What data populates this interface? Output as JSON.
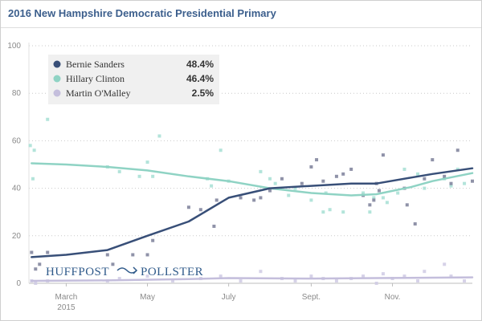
{
  "title": "2016 New Hampshire Democratic Presidential Primary",
  "brand": {
    "left": "HUFFPOST",
    "right": "POLLSTER",
    "icon": "arrow-logo-icon"
  },
  "chart_data": {
    "type": "scatter",
    "title": "2016 New Hampshire Democratic Presidential Primary",
    "xlabel": "",
    "ylabel": "",
    "ylim": [
      0,
      100
    ],
    "yticks": [
      0,
      20,
      40,
      60,
      80,
      100
    ],
    "xlim": [
      "2015-02-01",
      "2015-12-31"
    ],
    "xticks": [
      {
        "date": "2015-03-01",
        "label": "March",
        "sublabel": "2015"
      },
      {
        "date": "2015-05-01",
        "label": "May",
        "sublabel": ""
      },
      {
        "date": "2015-07-01",
        "label": "July",
        "sublabel": ""
      },
      {
        "date": "2015-09-01",
        "label": "Sept.",
        "sublabel": ""
      },
      {
        "date": "2015-11-01",
        "label": "Nov.",
        "sublabel": ""
      }
    ],
    "grid": true,
    "legend_placement": "top-left",
    "series": [
      {
        "name": "Bernie Sanders",
        "value_label": "48.4%",
        "color": "#384f78",
        "point_color": "#7b7f99",
        "trend": [
          [
            "2015-02-03",
            11
          ],
          [
            "2015-03-01",
            12
          ],
          [
            "2015-04-01",
            14
          ],
          [
            "2015-05-01",
            20
          ],
          [
            "2015-06-01",
            26
          ],
          [
            "2015-07-01",
            36
          ],
          [
            "2015-08-01",
            40
          ],
          [
            "2015-09-01",
            41
          ],
          [
            "2015-10-01",
            42
          ],
          [
            "2015-10-20",
            42
          ],
          [
            "2015-11-15",
            44.5
          ],
          [
            "2015-12-01",
            46
          ],
          [
            "2015-12-31",
            48.4
          ]
        ],
        "points": [
          [
            "2015-02-03",
            13
          ],
          [
            "2015-02-06",
            6
          ],
          [
            "2015-02-09",
            8
          ],
          [
            "2015-02-15",
            13
          ],
          [
            "2015-04-01",
            12
          ],
          [
            "2015-04-05",
            8
          ],
          [
            "2015-04-20",
            12
          ],
          [
            "2015-05-01",
            12
          ],
          [
            "2015-05-05",
            18
          ],
          [
            "2015-06-01",
            32
          ],
          [
            "2015-06-10",
            31
          ],
          [
            "2015-06-20",
            24
          ],
          [
            "2015-06-22",
            35
          ],
          [
            "2015-07-10",
            36
          ],
          [
            "2015-07-20",
            35
          ],
          [
            "2015-07-25",
            36
          ],
          [
            "2015-08-01",
            39
          ],
          [
            "2015-08-10",
            44
          ],
          [
            "2015-08-25",
            42
          ],
          [
            "2015-09-01",
            49
          ],
          [
            "2015-09-05",
            52
          ],
          [
            "2015-09-10",
            43
          ],
          [
            "2015-09-20",
            45
          ],
          [
            "2015-09-25",
            46
          ],
          [
            "2015-10-01",
            48
          ],
          [
            "2015-10-10",
            37
          ],
          [
            "2015-10-15",
            33
          ],
          [
            "2015-10-18",
            35
          ],
          [
            "2015-10-20",
            42
          ],
          [
            "2015-10-22",
            39
          ],
          [
            "2015-10-25",
            54
          ],
          [
            "2015-11-10",
            40
          ],
          [
            "2015-11-12",
            33
          ],
          [
            "2015-11-18",
            25
          ],
          [
            "2015-11-25",
            44
          ],
          [
            "2015-12-01",
            52
          ],
          [
            "2015-12-10",
            45
          ],
          [
            "2015-12-15",
            42
          ],
          [
            "2015-12-20",
            56
          ],
          [
            "2015-12-31",
            43
          ]
        ]
      },
      {
        "name": "Hillary Clinton",
        "value_label": "46.4%",
        "color": "#8fd3c4",
        "point_color": "#a6dfd3",
        "trend": [
          [
            "2015-02-03",
            50.5
          ],
          [
            "2015-03-01",
            50
          ],
          [
            "2015-04-01",
            49
          ],
          [
            "2015-05-01",
            47.5
          ],
          [
            "2015-06-01",
            45
          ],
          [
            "2015-07-01",
            43
          ],
          [
            "2015-08-01",
            40
          ],
          [
            "2015-09-01",
            38
          ],
          [
            "2015-10-01",
            37
          ],
          [
            "2015-10-20",
            37.5
          ],
          [
            "2015-11-15",
            40.5
          ],
          [
            "2015-12-01",
            43
          ],
          [
            "2015-12-31",
            46.4
          ]
        ],
        "points": [
          [
            "2015-02-02",
            58
          ],
          [
            "2015-02-04",
            44
          ],
          [
            "2015-02-05",
            56
          ],
          [
            "2015-02-15",
            69
          ],
          [
            "2015-04-01",
            49
          ],
          [
            "2015-04-10",
            47
          ],
          [
            "2015-04-25",
            45
          ],
          [
            "2015-05-01",
            51
          ],
          [
            "2015-05-05",
            45
          ],
          [
            "2015-05-10",
            62
          ],
          [
            "2015-06-15",
            44
          ],
          [
            "2015-06-18",
            41
          ],
          [
            "2015-06-25",
            56
          ],
          [
            "2015-07-01",
            43
          ],
          [
            "2015-07-25",
            47
          ],
          [
            "2015-08-01",
            44
          ],
          [
            "2015-08-05",
            42
          ],
          [
            "2015-08-15",
            37
          ],
          [
            "2015-08-20",
            40
          ],
          [
            "2015-09-01",
            35
          ],
          [
            "2015-09-10",
            30
          ],
          [
            "2015-09-12",
            38
          ],
          [
            "2015-09-15",
            31
          ],
          [
            "2015-09-25",
            30
          ],
          [
            "2015-10-10",
            38
          ],
          [
            "2015-10-15",
            30
          ],
          [
            "2015-10-18",
            36
          ],
          [
            "2015-10-25",
            36
          ],
          [
            "2015-10-28",
            34
          ],
          [
            "2015-11-05",
            38
          ],
          [
            "2015-11-10",
            48
          ],
          [
            "2015-11-20",
            46
          ],
          [
            "2015-11-25",
            40
          ],
          [
            "2015-12-10",
            44
          ],
          [
            "2015-12-15",
            41
          ],
          [
            "2015-12-20",
            48
          ],
          [
            "2015-12-25",
            42
          ]
        ]
      },
      {
        "name": "Martin O'Malley",
        "value_label": "2.5%",
        "color": "#c4bedc",
        "point_color": "#cfcae4",
        "trend": [
          [
            "2015-02-03",
            1
          ],
          [
            "2015-04-01",
            1.2
          ],
          [
            "2015-06-01",
            1.8
          ],
          [
            "2015-07-01",
            2.2
          ],
          [
            "2015-09-01",
            2
          ],
          [
            "2015-10-20",
            2.2
          ],
          [
            "2015-12-31",
            2.5
          ]
        ],
        "points": [
          [
            "2015-02-03",
            1
          ],
          [
            "2015-02-06",
            0
          ],
          [
            "2015-02-15",
            1
          ],
          [
            "2015-04-01",
            1
          ],
          [
            "2015-04-10",
            2
          ],
          [
            "2015-05-01",
            3
          ],
          [
            "2015-05-20",
            1
          ],
          [
            "2015-06-10",
            2
          ],
          [
            "2015-06-25",
            3
          ],
          [
            "2015-07-10",
            1
          ],
          [
            "2015-07-25",
            5
          ],
          [
            "2015-08-10",
            2
          ],
          [
            "2015-08-20",
            1
          ],
          [
            "2015-09-01",
            3
          ],
          [
            "2015-09-10",
            2
          ],
          [
            "2015-09-20",
            1
          ],
          [
            "2015-10-01",
            2
          ],
          [
            "2015-10-10",
            3
          ],
          [
            "2015-10-20",
            0
          ],
          [
            "2015-10-25",
            4
          ],
          [
            "2015-11-01",
            2
          ],
          [
            "2015-11-10",
            3
          ],
          [
            "2015-11-20",
            1
          ],
          [
            "2015-11-25",
            5
          ],
          [
            "2015-12-10",
            8
          ],
          [
            "2015-12-15",
            3
          ],
          [
            "2015-12-25",
            1
          ]
        ]
      }
    ]
  }
}
